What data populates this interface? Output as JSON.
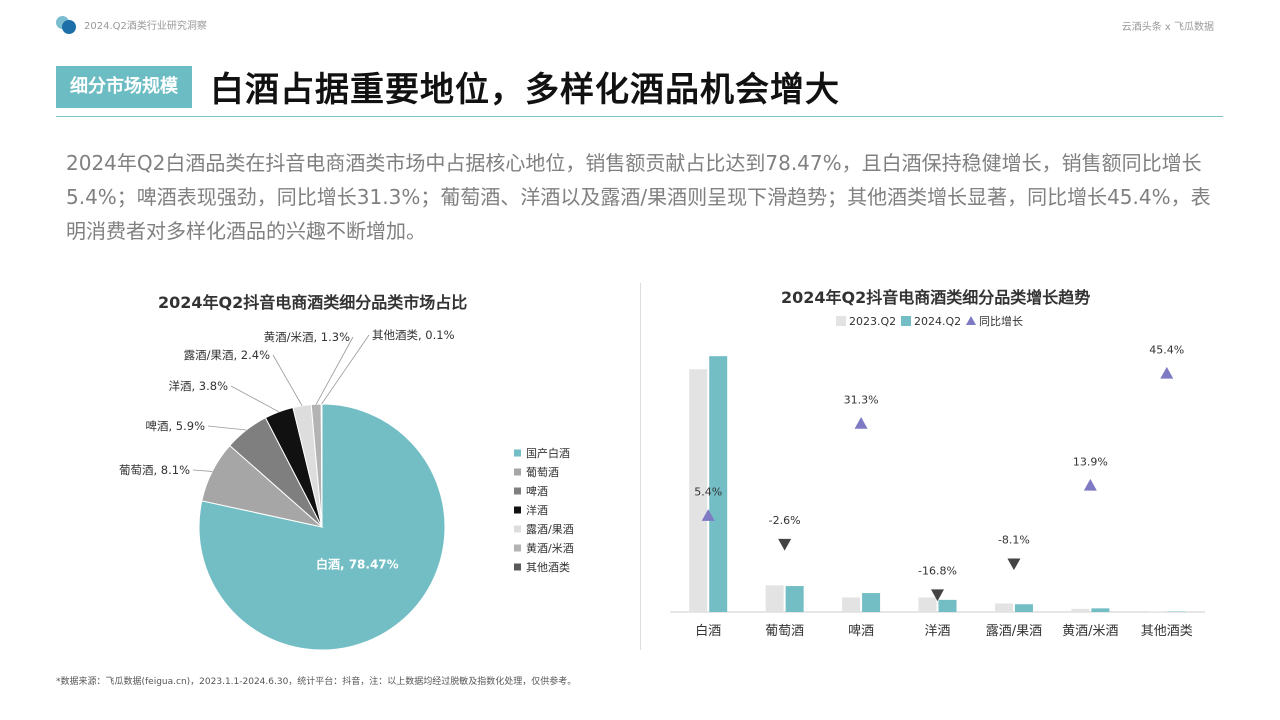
{
  "header": {
    "brand_title": "2024.Q2酒类行业研究洞察",
    "source_credit": "云酒头条 x 飞瓜数据",
    "section_tag": "细分市场规模",
    "headline": "白酒占据重要地位，多样化酒品机会增大"
  },
  "summary": "2024年Q2白酒品类在抖音电商酒类市场中占据核心地位，销售额贡献占比达到78.47%，且白酒保持稳健增长，销售额同比增长5.4%；啤酒表现强劲，同比增长31.3%；葡萄酒、洋酒以及露酒/果酒则呈现下滑趋势；其他酒类增长显著，同比增长45.4%，表明消费者对多样化酒品的兴趣不断增加。",
  "footnote": "*数据来源：飞瓜数据(feigua.cn)，2023.1.1-2024.6.30，统计平台：抖音，注：以上数据均经过脱敏及指数化处理，仅供参考。",
  "colors": {
    "accent": "#6cbcc3",
    "pie_main": "#72bec4",
    "bar_2023": "#e3e3e3",
    "bar_2024": "#72bec4",
    "growth_up": "#7f7ac4",
    "growth_down": "#444444"
  },
  "chart_data": [
    {
      "type": "pie",
      "title": "2024年Q2抖音电商酒类细分品类市场占比",
      "legend_position": "right",
      "categories": [
        "国产白酒",
        "葡萄酒",
        "啤酒",
        "洋酒",
        "露酒/果酒",
        "黄酒/米酒",
        "其他酒类"
      ],
      "slice_labels": [
        "白酒, 78.47%",
        "葡萄酒, 8.1%",
        "啤酒, 5.9%",
        "洋酒, 3.8%",
        "露酒/果酒, 2.4%",
        "黄酒/米酒, 1.3%",
        "其他酒类, 0.1%"
      ],
      "values": [
        78.47,
        8.1,
        5.9,
        3.8,
        2.4,
        1.3,
        0.1
      ],
      "colors": [
        "#72bec4",
        "#a6a6a6",
        "#7f7f7f",
        "#111111",
        "#dddddd",
        "#b3b3b3",
        "#595959"
      ]
    },
    {
      "type": "bar",
      "title": "2024年Q2抖音电商酒类细分品类增长趋势",
      "legend_position": "top",
      "categories": [
        "白酒",
        "葡萄酒",
        "啤酒",
        "洋酒",
        "露酒/果酒",
        "黄酒/米酒",
        "其他酒类"
      ],
      "series": [
        {
          "name": "2023.Q2",
          "values": [
            100,
            11.0,
            6.0,
            6.0,
            3.5,
            1.3,
            0.13
          ]
        },
        {
          "name": "2024.Q2",
          "values": [
            105.4,
            10.7,
            7.8,
            5.0,
            3.2,
            1.5,
            0.19
          ]
        }
      ],
      "growth_series": {
        "name": "同比增长",
        "values": [
          5.4,
          -2.6,
          31.3,
          -16.8,
          -8.1,
          13.9,
          45.4
        ],
        "labels": [
          "5.4%",
          "-2.6%",
          "31.3%",
          "-16.8%",
          "-8.1%",
          "13.9%",
          "45.4%"
        ]
      },
      "ylim": [
        0,
        110
      ],
      "grid": false
    }
  ]
}
